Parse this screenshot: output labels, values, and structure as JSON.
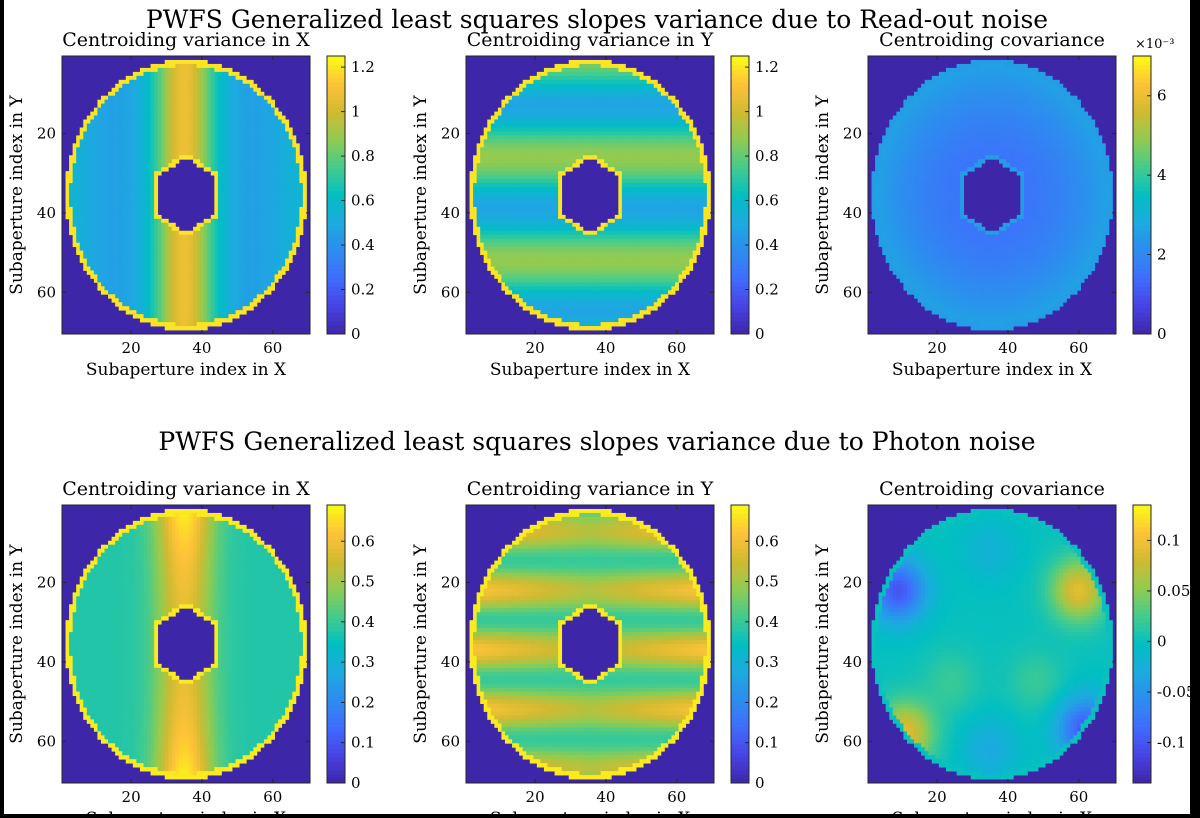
{
  "figure": {
    "sections": [
      {
        "title": "PWFS Generalized least squares slopes variance due to Read-out noise",
        "panels": [
          {
            "title": "Centroiding variance in X",
            "colorbar": {
              "min": 0,
              "max": 1.25,
              "ticks": [
                0,
                0.2,
                0.4,
                0.6,
                0.8,
                1,
                1.2
              ],
              "multiplier": ""
            }
          },
          {
            "title": "Centroiding variance in Y",
            "colorbar": {
              "min": 0,
              "max": 1.25,
              "ticks": [
                0,
                0.2,
                0.4,
                0.6,
                0.8,
                1,
                1.2
              ],
              "multiplier": ""
            }
          },
          {
            "title": "Centroiding covariance",
            "colorbar": {
              "min": 0,
              "max": 7,
              "ticks": [
                0,
                2,
                4,
                6
              ],
              "multiplier": "×10⁻³"
            }
          }
        ]
      },
      {
        "title": "PWFS Generalized least squares slopes variance due to Photon noise",
        "panels": [
          {
            "title": "Centroiding variance in X",
            "colorbar": {
              "min": 0,
              "max": 0.69,
              "ticks": [
                0,
                0.1,
                0.2,
                0.3,
                0.4,
                0.5,
                0.6
              ],
              "multiplier": ""
            }
          },
          {
            "title": "Centroiding variance in Y",
            "colorbar": {
              "min": 0,
              "max": 0.69,
              "ticks": [
                0,
                0.1,
                0.2,
                0.3,
                0.4,
                0.5,
                0.6
              ],
              "multiplier": ""
            }
          },
          {
            "title": "Centroiding covariance",
            "colorbar": {
              "min": -0.14,
              "max": 0.135,
              "ticks": [
                -0.1,
                -0.05,
                0,
                0.05,
                0.1
              ],
              "multiplier": ""
            }
          }
        ]
      }
    ]
  },
  "chart_data": [
    {
      "type": "heatmap",
      "title": "Centroiding variance in X",
      "xlabel": "Subaperture index in X",
      "ylabel": "Subaperture index in Y",
      "xlim": [
        1,
        70
      ],
      "ylim": [
        1,
        70
      ],
      "xticks": [
        20,
        40,
        60
      ],
      "yticks": [
        20,
        40,
        60
      ],
      "colorbar_range": [
        0,
        1.25
      ],
      "pupil": {
        "center": [
          35.5,
          35.5
        ],
        "outer_radius": 34,
        "inner_hexagon_radius": 9.5,
        "outside_value": 0
      },
      "pattern": "vertical bands: ~0.5 at left/right edges, ~0.95-1.1 in central column x≈28-42",
      "edge_value": 1.2
    },
    {
      "type": "heatmap",
      "title": "Centroiding variance in Y",
      "xlabel": "Subaperture index in X",
      "ylabel": "Subaperture index in Y",
      "xlim": [
        1,
        70
      ],
      "ylim": [
        1,
        70
      ],
      "xticks": [
        20,
        40,
        60
      ],
      "yticks": [
        20,
        40,
        60
      ],
      "colorbar_range": [
        0,
        1.25
      ],
      "pupil": {
        "center": [
          35.5,
          35.5
        ],
        "outer_radius": 34,
        "inner_hexagon_radius": 9.5,
        "outside_value": 0
      },
      "pattern": "horizontal bands: ~0.6 near y≈10-20 and y≈35-42, ~0.9 near y≈26 and y≈52",
      "edge_value": 1.2
    },
    {
      "type": "heatmap",
      "title": "Centroiding covariance",
      "xlabel": "Subaperture index in X",
      "ylabel": "Subaperture index in Y",
      "xlim": [
        1,
        70
      ],
      "ylim": [
        1,
        70
      ],
      "xticks": [
        20,
        40,
        60
      ],
      "yticks": [
        20,
        40,
        60
      ],
      "colorbar_range": [
        0,
        0.007
      ],
      "colorbar_multiplier": "×10⁻³",
      "pupil": {
        "center": [
          35.5,
          35.5
        ],
        "outer_radius": 34,
        "inner_hexagon_radius": 9.5,
        "outside_value": 0
      },
      "pattern": "nearly uniform ~0.0015-0.002, slightly higher toward the rim",
      "edge_value": 0.0025
    },
    {
      "type": "heatmap",
      "title": "Centroiding variance in X",
      "xlabel": "Subaperture index in X",
      "ylabel": "Subaperture index in Y",
      "xlim": [
        1,
        70
      ],
      "ylim": [
        1,
        70
      ],
      "xticks": [
        20,
        40,
        60
      ],
      "yticks": [
        20,
        40,
        60
      ],
      "colorbar_range": [
        0,
        0.69
      ],
      "pupil": {
        "center": [
          35.5,
          35.5
        ],
        "outer_radius": 34,
        "inner_hexagon_radius": 9.5,
        "outside_value": 0
      },
      "pattern": "vertical band ~0.55 in central column, up to ~0.65 near top and bottom; ~0.4 elsewhere",
      "edge_value": 0.67
    },
    {
      "type": "heatmap",
      "title": "Centroiding variance in Y",
      "xlabel": "Subaperture index in X",
      "ylabel": "Subaperture index in Y",
      "xlim": [
        1,
        70
      ],
      "ylim": [
        1,
        70
      ],
      "xticks": [
        20,
        40,
        60
      ],
      "yticks": [
        20,
        40,
        60
      ],
      "colorbar_range": [
        0,
        0.69
      ],
      "pupil": {
        "center": [
          35.5,
          35.5
        ],
        "outer_radius": 34,
        "inner_hexagon_radius": 9.5,
        "outside_value": 0
      },
      "pattern": "horizontal bands ~0.55 near y≈22 and y≈52, peaks ~0.6 toward left/right sides; ~0.4 elsewhere",
      "edge_value": 0.67
    },
    {
      "type": "heatmap",
      "title": "Centroiding covariance",
      "xlabel": "Subaperture index in X",
      "ylabel": "Subaperture index in Y",
      "xlim": [
        1,
        70
      ],
      "ylim": [
        1,
        70
      ],
      "xticks": [
        20,
        40,
        60
      ],
      "yticks": [
        20,
        40,
        60
      ],
      "colorbar_range": [
        -0.14,
        0.135
      ],
      "pupil": {
        "center": [
          35.5,
          35.5
        ],
        "outer_radius": 34,
        "inner_hexagon_radius": 0,
        "outside_value": 0
      },
      "pattern": "quadrupole-like: ~+0.09 at upper-right and lower-left lobes, ~-0.1 at upper-left and lower-right lobes, ~0 at center",
      "edge_value": 0
    }
  ]
}
